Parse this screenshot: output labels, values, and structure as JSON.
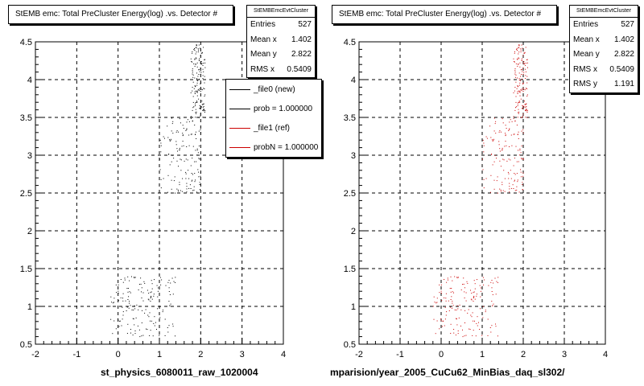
{
  "colors": {
    "left_markers": "#000000",
    "right_markers": "#cc0000",
    "axis": "#000000",
    "grid": "#000000"
  },
  "left_panel": {
    "title": "StEMB emc: Total PreCluster Energy(log) .vs. Detector #",
    "x_axis_title": "st_physics_6080011_raw_1020004",
    "stats": {
      "name": "StEMBEmcEvtCluster",
      "rows": [
        {
          "label": "Entries",
          "value": "527"
        },
        {
          "label": "Mean x",
          "value": "1.402"
        },
        {
          "label": "Mean y",
          "value": "2.822"
        },
        {
          "label": "RMS x",
          "value": "0.5409"
        }
      ]
    },
    "legend": [
      {
        "label": "_file0 (new)",
        "color": "#000000"
      },
      {
        "label": "prob = 1.000000",
        "color": "#000000"
      },
      {
        "label": "_file1 (ref)",
        "color": "#cc0000"
      },
      {
        "label": "probN = 1.000000",
        "color": "#cc0000"
      }
    ]
  },
  "right_panel": {
    "title": "StEMB emc: Total PreCluster Energy(log) .vs. Detector #",
    "x_axis_title": "mparision/year_2005_CuCu62_MinBias_daq_sl302/",
    "stats": {
      "name": "StEMBEmcEvtCluster",
      "rows": [
        {
          "label": "Entries",
          "value": "527"
        },
        {
          "label": "Mean x",
          "value": "1.402"
        },
        {
          "label": "Mean y",
          "value": "2.822"
        },
        {
          "label": "RMS x",
          "value": "0.5409"
        },
        {
          "label": "RMS y",
          "value": "1.191"
        }
      ]
    }
  },
  "chart_data": [
    {
      "type": "scatter",
      "title": "StEMB emc: Total PreCluster Energy(log) .vs. Detector #",
      "xlabel": "st_physics_6080011_raw_1020004",
      "ylabel": "",
      "xlim": [
        -2,
        4
      ],
      "ylim": [
        0.5,
        4.5
      ],
      "xticks": [
        "-2",
        "-1",
        "0",
        "1",
        "2",
        "3",
        "4"
      ],
      "yticks": [
        "0.5",
        "1",
        "1.5",
        "2",
        "2.5",
        "3",
        "3.5",
        "4",
        "4.5"
      ],
      "grid": true,
      "legend_position": "top-right",
      "series": [
        {
          "name": "_file0 (new)",
          "color": "#000000",
          "clusters": [
            {
              "x": [
                1.75,
                2.1
              ],
              "y": [
                3.5,
                4.5
              ],
              "n": 150
            },
            {
              "x": [
                1.0,
                2.0
              ],
              "y": [
                2.5,
                3.5
              ],
              "n": 140
            },
            {
              "x": [
                -0.2,
                1.4
              ],
              "y": [
                0.6,
                1.4
              ],
              "n": 160
            }
          ],
          "entries": 527
        }
      ]
    },
    {
      "type": "scatter",
      "title": "StEMB emc: Total PreCluster Energy(log) .vs. Detector #",
      "xlabel": "mparision/year_2005_CuCu62_MinBias_daq_sl302/",
      "ylabel": "",
      "xlim": [
        -2,
        4
      ],
      "ylim": [
        0.5,
        4.5
      ],
      "xticks": [
        "-2",
        "-1",
        "0",
        "1",
        "2",
        "3",
        "4"
      ],
      "yticks": [
        "0.5",
        "1",
        "1.5",
        "2",
        "2.5",
        "3",
        "3.5",
        "4",
        "4.5"
      ],
      "grid": true,
      "series": [
        {
          "name": "_file1 (ref)",
          "color": "#cc0000",
          "clusters": [
            {
              "x": [
                1.75,
                2.1
              ],
              "y": [
                3.5,
                4.5
              ],
              "n": 150
            },
            {
              "x": [
                1.0,
                2.0
              ],
              "y": [
                2.5,
                3.5
              ],
              "n": 140
            },
            {
              "x": [
                -0.2,
                1.4
              ],
              "y": [
                0.6,
                1.4
              ],
              "n": 160
            }
          ],
          "entries": 527
        }
      ]
    }
  ]
}
